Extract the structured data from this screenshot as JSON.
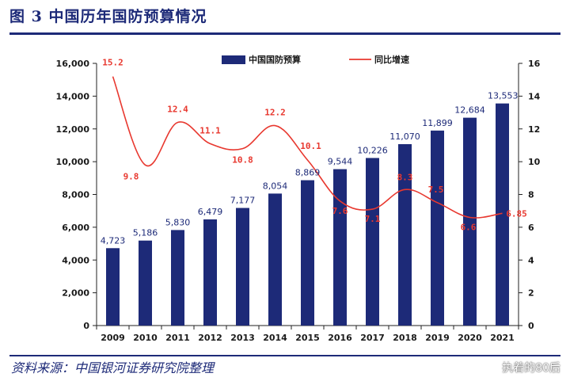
{
  "header": {
    "title": "图 3 中国历年国防预算情况"
  },
  "footer": {
    "source": "资料来源：中国银河证券研究院整理",
    "watermark": "执着的80后"
  },
  "colors": {
    "bar": "#1d2a78",
    "line": "#e8382f",
    "rule": "#1d2a78"
  },
  "chart_data": {
    "type": "bar",
    "categories": [
      "2009",
      "2010",
      "2011",
      "2012",
      "2013",
      "2014",
      "2015",
      "2016",
      "2017",
      "2018",
      "2019",
      "2020",
      "2021"
    ],
    "series": [
      {
        "name": "中国国防预算",
        "type": "bar",
        "axis": "left",
        "values": [
          4723,
          5186,
          5830,
          6479,
          7177,
          8054,
          8869,
          9544,
          10226,
          11070,
          11899,
          12684,
          13553
        ],
        "labels": [
          "4,723",
          "5,186",
          "5,830",
          "6,479",
          "7,177",
          "8,054",
          "8,869",
          "9,544",
          "10,226",
          "11,070",
          "11,899",
          "12,684",
          "13,553"
        ]
      },
      {
        "name": "同比增速",
        "type": "line",
        "axis": "right",
        "values": [
          15.2,
          9.8,
          12.4,
          11.1,
          10.8,
          12.2,
          10.1,
          7.6,
          7.1,
          8.3,
          7.5,
          6.6,
          6.85
        ],
        "labels": [
          "15.2",
          "9.8",
          "12.4",
          "11.1",
          "10.8",
          "12.2",
          "10.1",
          "7.6",
          "7.1",
          "8.3",
          "7.5",
          "6.6",
          "6.85"
        ]
      }
    ],
    "y_left": {
      "range": [
        0,
        16000
      ],
      "ticks": [
        "0",
        "2,000",
        "4,000",
        "6,000",
        "8,000",
        "10,000",
        "12,000",
        "14,000",
        "16,000"
      ]
    },
    "y_right": {
      "range": [
        0,
        16
      ],
      "ticks": [
        "0",
        "2",
        "4",
        "6",
        "8",
        "10",
        "12",
        "14",
        "16"
      ]
    },
    "grid": false,
    "legend_position": "top"
  }
}
